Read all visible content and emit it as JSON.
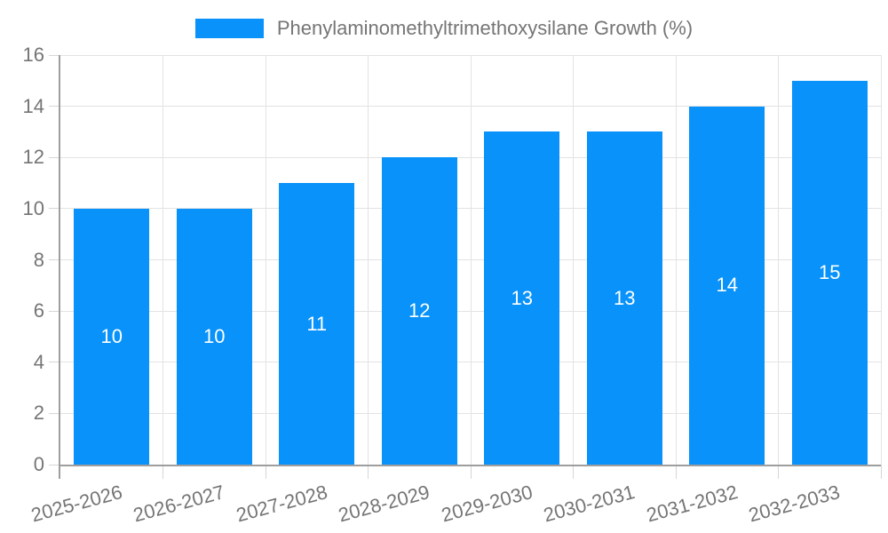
{
  "chart_data": {
    "type": "bar",
    "title": "Phenylaminomethyltrimethoxysilane Growth (%)",
    "categories": [
      "2025-2026",
      "2026-2027",
      "2027-2028",
      "2028-2029",
      "2029-2030",
      "2030-2031",
      "2031-2032",
      "2032-2033"
    ],
    "values": [
      10,
      10,
      11,
      12,
      13,
      13,
      14,
      15
    ],
    "value_labels": [
      "10",
      "10",
      "11",
      "12",
      "13",
      "13",
      "14",
      "15"
    ],
    "xlabel": "",
    "ylabel": "",
    "ylim": [
      0,
      16
    ],
    "yticks": [
      0,
      2,
      4,
      6,
      8,
      10,
      12,
      14,
      16
    ],
    "grid": true,
    "legend_position": "top-center",
    "x_label_rotation_deg": -15,
    "colors": {
      "bar": "#0892fa",
      "value_label": "#ffffff",
      "axis_text": "#757575",
      "gridline": "#e3e3e3",
      "axis_line": "#9e9e9e"
    }
  }
}
